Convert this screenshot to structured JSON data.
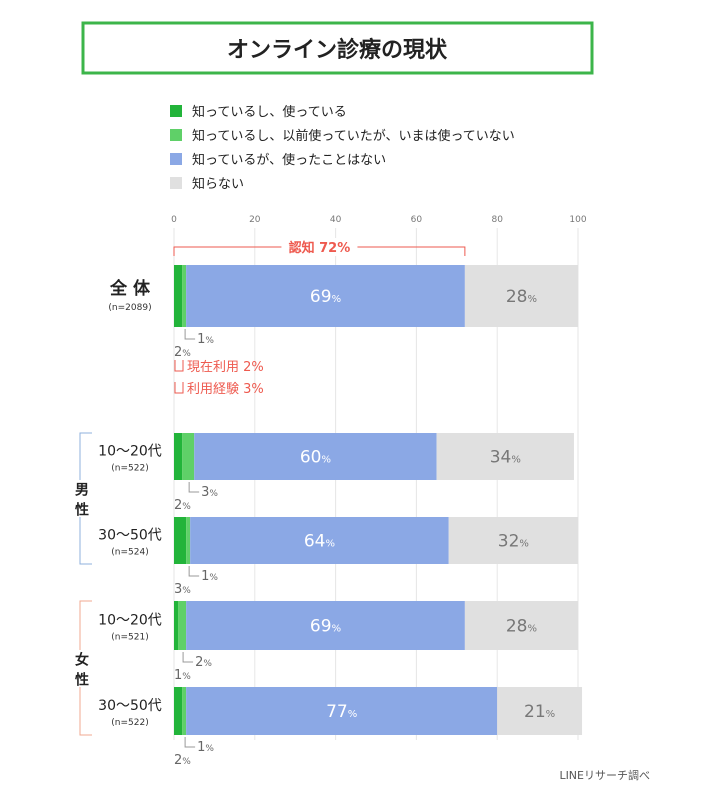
{
  "chart_data": {
    "type": "bar",
    "orientation": "horizontal",
    "stacked": true,
    "title": "オンライン診療の現状",
    "source": "LINEリサーチ調べ",
    "xlim": [
      0,
      100
    ],
    "x_ticks": [
      "0",
      "20",
      "40",
      "60",
      "80",
      "100"
    ],
    "legend": [
      {
        "label": "知っているし、使っている",
        "color": "#22b43a"
      },
      {
        "label": "知っているし、以前使っていたが、いまは使っていない",
        "color": "#5fd068"
      },
      {
        "label": "知っているが、使ったことはない",
        "color": "#8ba8e5"
      },
      {
        "label": "知らない",
        "color": "#e0e0e0"
      }
    ],
    "unit": "%",
    "groups": [
      {
        "label": "男\n性",
        "rows": [
          1,
          2
        ],
        "color": "#8fb0dc"
      },
      {
        "label": "女\n性",
        "rows": [
          3,
          4
        ],
        "color": "#f0a990"
      }
    ],
    "rows": [
      {
        "label": "全 体",
        "n": "(n=2089)",
        "values": [
          2,
          1,
          69,
          28
        ]
      },
      {
        "label": "10〜20代",
        "n": "(n=522)",
        "values": [
          2,
          3,
          60,
          34
        ]
      },
      {
        "label": "30〜50代",
        "n": "(n=524)",
        "values": [
          3,
          1,
          64,
          32
        ]
      },
      {
        "label": "10〜20代",
        "n": "(n=521)",
        "values": [
          1,
          2,
          69,
          28
        ]
      },
      {
        "label": "30〜50代",
        "n": "(n=522)",
        "values": [
          2,
          1,
          77,
          21
        ]
      }
    ],
    "annotations": {
      "awareness": "認知 72%",
      "current": "現在利用 2%",
      "experience": "利用経験 3%",
      "color": "#ee5a4f"
    }
  }
}
